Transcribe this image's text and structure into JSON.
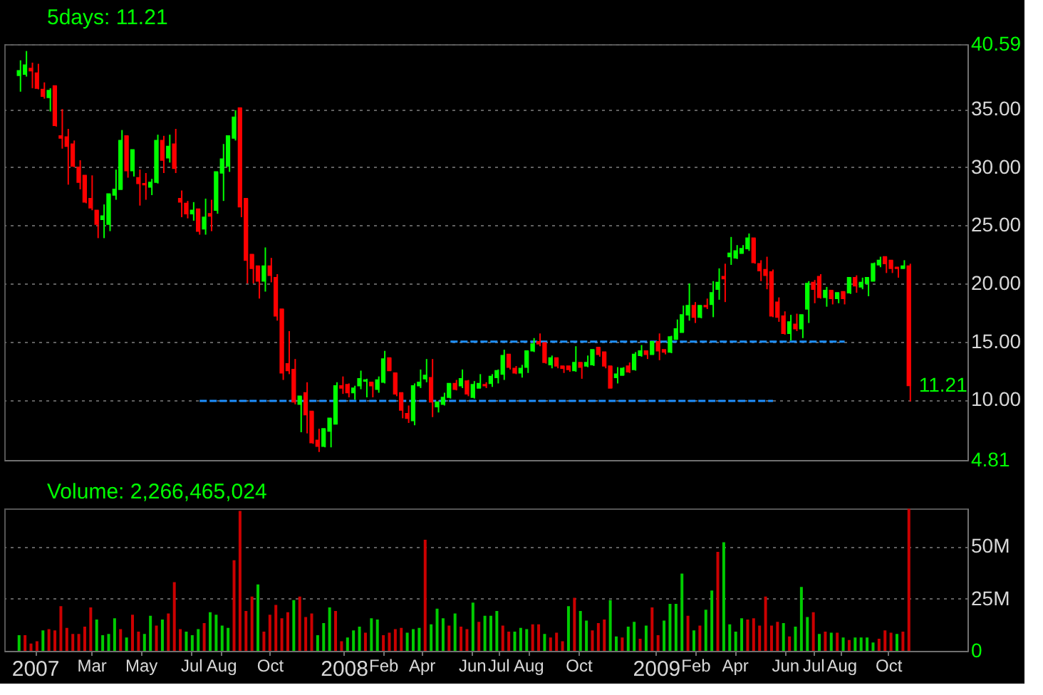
{
  "chart_data": [
    {
      "type": "candlestick",
      "title": "5days: 11.21",
      "x": [
        "2006-12-22",
        "2006-12-29",
        "2007-01-05",
        "2007-01-12",
        "2007-01-19",
        "2007-01-26",
        "2007-02-02",
        "2007-02-09",
        "2007-02-16",
        "2007-02-23",
        "2007-03-02",
        "2007-03-09",
        "2007-03-16",
        "2007-03-23",
        "2007-03-30",
        "2007-04-06",
        "2007-04-13",
        "2007-04-20",
        "2007-04-27",
        "2007-05-04",
        "2007-05-11",
        "2007-05-18",
        "2007-05-25",
        "2007-06-01",
        "2007-06-08",
        "2007-06-15",
        "2007-06-22",
        "2007-06-29",
        "2007-07-06",
        "2007-07-13",
        "2007-07-20",
        "2007-07-27",
        "2007-08-03",
        "2007-08-10",
        "2007-08-17",
        "2007-08-24",
        "2007-08-31",
        "2007-09-07",
        "2007-09-14",
        "2007-09-21",
        "2007-09-28",
        "2007-10-05",
        "2007-10-12",
        "2007-10-19",
        "2007-10-26",
        "2007-11-02",
        "2007-11-09",
        "2007-11-16",
        "2007-11-23",
        "2007-11-30",
        "2007-12-07",
        "2007-12-14",
        "2007-12-21",
        "2007-12-28",
        "2008-01-04",
        "2008-01-11",
        "2008-01-18",
        "2008-01-25",
        "2008-02-01",
        "2008-02-08",
        "2008-02-15",
        "2008-02-22",
        "2008-02-29",
        "2008-03-07",
        "2008-03-14",
        "2008-03-21",
        "2008-03-28",
        "2008-04-04",
        "2008-04-11",
        "2008-04-18",
        "2008-04-25",
        "2008-05-02",
        "2008-05-09",
        "2008-05-16",
        "2008-05-23",
        "2008-05-30",
        "2008-06-06",
        "2008-06-13",
        "2008-06-20",
        "2008-06-27",
        "2008-07-04",
        "2008-07-11",
        "2008-07-18",
        "2008-07-25",
        "2008-08-01",
        "2008-08-08",
        "2008-08-15",
        "2008-08-22",
        "2008-08-29",
        "2008-09-05",
        "2008-09-12",
        "2008-09-19",
        "2008-09-26",
        "2008-10-03",
        "2008-10-10",
        "2008-10-17",
        "2008-10-24",
        "2008-10-31",
        "2008-11-07",
        "2008-11-14",
        "2008-11-21",
        "2008-11-28",
        "2008-12-05",
        "2008-12-12",
        "2008-12-19",
        "2008-12-26",
        "2009-01-02",
        "2009-01-09",
        "2009-01-16",
        "2009-01-23",
        "2009-01-30",
        "2009-02-06",
        "2009-02-13",
        "2009-02-20",
        "2009-02-27",
        "2009-03-06",
        "2009-03-13",
        "2009-03-20",
        "2009-03-27",
        "2009-04-03",
        "2009-04-10",
        "2009-04-17",
        "2009-04-24",
        "2009-05-01",
        "2009-05-08",
        "2009-05-15",
        "2009-05-22",
        "2009-05-29",
        "2009-06-05",
        "2009-06-12",
        "2009-06-19",
        "2009-06-26",
        "2009-07-03",
        "2009-07-10",
        "2009-07-17",
        "2009-07-24",
        "2009-07-31",
        "2009-08-07",
        "2009-08-14",
        "2009-08-21",
        "2009-08-28",
        "2009-09-04",
        "2009-09-11",
        "2009-09-18",
        "2009-09-25",
        "2009-10-02",
        "2009-10-09",
        "2009-10-16",
        "2009-10-23",
        "2009-10-30"
      ],
      "ohlc": [
        [
          37.9,
          39.2,
          36.5,
          38.3
        ],
        [
          38.0,
          40.0,
          37.8,
          38.8
        ],
        [
          38.5,
          39.0,
          36.8,
          38.3
        ],
        [
          38.1,
          38.9,
          36.7,
          36.8
        ],
        [
          36.7,
          37.3,
          35.9,
          36.1
        ],
        [
          36.0,
          36.8,
          34.8,
          36.6
        ],
        [
          37.0,
          37.0,
          33.5,
          33.6
        ],
        [
          32.7,
          35.0,
          31.6,
          32.5
        ],
        [
          32.6,
          33.3,
          28.5,
          31.8
        ],
        [
          32.0,
          32.3,
          30.0,
          30.1
        ],
        [
          30.0,
          30.6,
          28.1,
          28.7
        ],
        [
          29.3,
          29.3,
          26.9,
          27.0
        ],
        [
          27.3,
          29.3,
          26.3,
          26.5
        ],
        [
          26.3,
          26.3,
          23.9,
          25.1
        ],
        [
          25.5,
          26.8,
          23.9,
          25.8
        ],
        [
          25.1,
          27.7,
          24.5,
          27.7
        ],
        [
          27.6,
          29.8,
          27.2,
          28.1
        ],
        [
          28.1,
          33.2,
          28.1,
          32.3
        ],
        [
          32.7,
          32.7,
          29.1,
          29.7
        ],
        [
          29.7,
          31.5,
          29.2,
          31.5
        ],
        [
          29.1,
          29.8,
          26.7,
          28.6
        ],
        [
          28.6,
          29.5,
          27.2,
          28.5
        ],
        [
          28.3,
          29.0,
          27.6,
          28.7
        ],
        [
          28.7,
          32.8,
          28.6,
          32.3
        ],
        [
          32.3,
          32.7,
          29.5,
          30.6
        ],
        [
          30.8,
          32.8,
          30.4,
          31.8
        ],
        [
          32.0,
          33.3,
          29.5,
          29.9
        ],
        [
          27.3,
          28.0,
          25.7,
          27.0
        ],
        [
          26.9,
          27.1,
          25.6,
          26.0
        ],
        [
          26.0,
          27.0,
          25.4,
          26.3
        ],
        [
          26.4,
          26.4,
          24.2,
          24.5
        ],
        [
          24.7,
          27.3,
          24.2,
          25.7
        ],
        [
          26.0,
          27.2,
          24.5,
          25.8
        ],
        [
          26.3,
          29.6,
          26.0,
          29.6
        ],
        [
          29.5,
          32.0,
          27.1,
          30.7
        ],
        [
          30.1,
          32.7,
          29.6,
          32.7
        ],
        [
          32.5,
          34.9,
          32.3,
          34.3
        ],
        [
          35.1,
          35.1,
          25.7,
          26.6
        ],
        [
          27.3,
          27.3,
          20.0,
          22.0
        ],
        [
          22.5,
          22.5,
          20.0,
          21.3
        ],
        [
          21.5,
          21.5,
          18.7,
          20.2
        ],
        [
          20.2,
          23.1,
          19.3,
          21.5
        ],
        [
          21.5,
          22.2,
          20.1,
          20.7
        ],
        [
          20.5,
          20.8,
          16.8,
          17.2
        ],
        [
          17.8,
          17.8,
          11.7,
          12.3
        ],
        [
          13.1,
          15.9,
          12.2,
          12.5
        ],
        [
          12.6,
          13.5,
          9.6,
          9.8
        ],
        [
          9.6,
          10.3,
          7.2,
          10.3
        ],
        [
          10.6,
          11.5,
          7.1,
          8.7
        ],
        [
          9.0,
          9.0,
          6.2,
          6.3
        ],
        [
          6.5,
          7.5,
          5.5,
          6.0
        ],
        [
          6.0,
          7.5,
          5.9,
          7.5
        ],
        [
          7.3,
          8.4,
          5.9,
          8.4
        ],
        [
          7.9,
          11.5,
          7.9,
          11.2
        ],
        [
          11.2,
          12.0,
          10.5,
          11.0
        ],
        [
          11.3,
          11.4,
          10.2,
          10.6
        ],
        [
          10.6,
          11.2,
          10.0,
          11.0
        ],
        [
          11.2,
          12.5,
          10.9,
          11.8
        ],
        [
          11.6,
          11.8,
          10.2,
          11.7
        ],
        [
          11.5,
          11.5,
          10.2,
          11.2
        ],
        [
          10.9,
          12.0,
          10.6,
          11.7
        ],
        [
          11.5,
          14.2,
          11.4,
          13.5
        ],
        [
          13.6,
          13.6,
          12.5,
          12.5
        ],
        [
          12.3,
          12.3,
          10.3,
          10.5
        ],
        [
          10.6,
          10.6,
          8.4,
          9.1
        ],
        [
          8.8,
          9.5,
          8.0,
          8.4
        ],
        [
          8.2,
          11.4,
          7.8,
          11.2
        ],
        [
          11.2,
          12.6,
          11.0,
          11.5
        ],
        [
          11.8,
          13.5,
          11.5,
          12.1
        ],
        [
          11.9,
          13.5,
          8.5,
          9.8
        ],
        [
          9.4,
          9.8,
          8.9,
          9.8
        ],
        [
          9.6,
          10.6,
          9.5,
          10.2
        ],
        [
          10.2,
          11.4,
          10.1,
          11.4
        ],
        [
          11.4,
          11.7,
          10.8,
          10.9
        ],
        [
          11.2,
          12.6,
          11.0,
          11.8
        ],
        [
          11.6,
          11.7,
          10.3,
          10.5
        ],
        [
          10.2,
          11.6,
          10.1,
          11.3
        ],
        [
          11.0,
          12.2,
          11.0,
          11.4
        ],
        [
          11.3,
          11.5,
          11.0,
          11.2
        ],
        [
          11.4,
          12.2,
          11.1,
          12.0
        ],
        [
          11.9,
          12.6,
          11.4,
          12.5
        ],
        [
          12.2,
          14.3,
          11.7,
          13.8
        ],
        [
          13.9,
          13.9,
          12.6,
          12.8
        ],
        [
          12.7,
          12.9,
          12.2,
          12.3
        ],
        [
          12.3,
          13.0,
          11.9,
          12.7
        ],
        [
          12.8,
          14.2,
          12.3,
          14.2
        ],
        [
          14.2,
          15.3,
          14.1,
          14.8
        ],
        [
          15.0,
          15.7,
          14.6,
          14.8
        ],
        [
          14.9,
          14.9,
          13.1,
          13.2
        ],
        [
          13.0,
          13.8,
          12.7,
          13.6
        ],
        [
          13.6,
          13.6,
          12.7,
          12.9
        ],
        [
          12.9,
          12.9,
          12.3,
          12.7
        ],
        [
          12.9,
          12.9,
          12.4,
          12.6
        ],
        [
          12.5,
          14.6,
          12.4,
          13.2
        ],
        [
          13.2,
          13.2,
          11.8,
          12.8
        ],
        [
          12.9,
          13.8,
          12.8,
          13.2
        ],
        [
          13.0,
          14.3,
          12.9,
          14.3
        ],
        [
          14.5,
          14.5,
          13.7,
          13.9
        ],
        [
          14.1,
          14.1,
          12.7,
          12.9
        ],
        [
          12.9,
          12.9,
          11.0,
          11.0
        ],
        [
          11.9,
          12.8,
          11.4,
          12.2
        ],
        [
          12.1,
          12.8,
          12.1,
          12.7
        ],
        [
          12.9,
          13.2,
          12.3,
          12.4
        ],
        [
          12.6,
          14.1,
          12.5,
          13.9
        ],
        [
          13.8,
          14.7,
          13.7,
          14.2
        ],
        [
          14.2,
          14.2,
          13.5,
          13.9
        ],
        [
          13.9,
          15.0,
          13.9,
          15.0
        ],
        [
          15.0,
          15.7,
          13.4,
          14.2
        ],
        [
          14.3,
          14.3,
          13.9,
          14.1
        ],
        [
          14.1,
          15.5,
          14.0,
          15.4
        ],
        [
          15.2,
          16.9,
          15.2,
          16.1
        ],
        [
          15.8,
          18.1,
          15.8,
          17.3
        ],
        [
          17.3,
          20.0,
          16.8,
          18.1
        ],
        [
          18.1,
          18.4,
          16.6,
          17.1
        ],
        [
          17.1,
          18.1,
          17.0,
          18.1
        ],
        [
          18.1,
          18.7,
          17.8,
          18.0
        ],
        [
          18.2,
          20.2,
          17.1,
          19.2
        ],
        [
          19.5,
          21.3,
          18.6,
          20.1
        ],
        [
          20.6,
          21.7,
          18.4,
          20.4
        ],
        [
          22.3,
          24.0,
          21.6,
          22.6
        ],
        [
          22.2,
          23.3,
          22.1,
          22.8
        ],
        [
          22.6,
          23.3,
          22.6,
          23.0
        ],
        [
          23.0,
          24.3,
          22.8,
          23.9
        ],
        [
          23.9,
          23.9,
          21.7,
          21.8
        ],
        [
          21.7,
          22.0,
          20.2,
          21.1
        ],
        [
          21.2,
          22.3,
          19.5,
          20.7
        ],
        [
          21.0,
          21.2,
          17.1,
          17.2
        ],
        [
          18.4,
          18.8,
          16.7,
          17.1
        ],
        [
          17.2,
          17.6,
          15.6,
          15.7
        ],
        [
          15.7,
          17.3,
          15.1,
          16.7
        ],
        [
          16.5,
          17.4,
          15.9,
          16.1
        ],
        [
          16.1,
          17.3,
          15.3,
          17.3
        ],
        [
          17.8,
          20.2,
          16.6,
          20.0
        ],
        [
          20.1,
          20.3,
          18.3,
          19.5
        ],
        [
          20.6,
          20.8,
          18.7,
          18.8
        ],
        [
          18.8,
          19.7,
          18.0,
          19.4
        ],
        [
          19.4,
          19.4,
          18.2,
          18.7
        ],
        [
          18.7,
          19.2,
          18.3,
          19.2
        ],
        [
          19.3,
          19.3,
          18.2,
          18.7
        ],
        [
          19.2,
          20.5,
          19.1,
          20.5
        ],
        [
          20.5,
          20.7,
          19.2,
          19.8
        ],
        [
          19.7,
          20.5,
          19.5,
          20.1
        ],
        [
          20.0,
          20.5,
          18.9,
          20.5
        ],
        [
          20.2,
          21.8,
          20.2,
          21.7
        ],
        [
          21.6,
          22.3,
          21.4,
          22.0
        ],
        [
          22.3,
          22.3,
          20.9,
          21.7
        ],
        [
          22.0,
          22.0,
          20.9,
          21.3
        ],
        [
          21.4,
          21.4,
          20.5,
          21.3
        ],
        [
          21.3,
          22.0,
          21.3,
          21.5
        ],
        [
          21.5,
          21.7,
          9.85,
          11.21
        ]
      ],
      "colors": [
        "#00ff00",
        "#00ff00",
        "#ff0000",
        "#ff0000",
        "#ff0000",
        "#00ff00",
        "#ff0000",
        "#ff0000",
        "#ff0000",
        "#ff0000",
        "#ff0000",
        "#ff0000",
        "#ff0000",
        "#ff0000",
        "#00ff00",
        "#00ff00",
        "#00ff00",
        "#00ff00",
        "#ff0000",
        "#00ff00",
        "#ff0000",
        "#ff0000",
        "#00ff00",
        "#00ff00",
        "#ff0000",
        "#00ff00",
        "#ff0000",
        "#ff0000",
        "#ff0000",
        "#00ff00",
        "#ff0000",
        "#00ff00",
        "#ff0000",
        "#00ff00",
        "#00ff00",
        "#00ff00",
        "#00ff00",
        "#ff0000",
        "#ff0000",
        "#ff0000",
        "#ff0000",
        "#00ff00",
        "#ff0000",
        "#ff0000",
        "#ff0000",
        "#ff0000",
        "#ff0000",
        "#00ff00",
        "#ff0000",
        "#ff0000",
        "#ff0000",
        "#00ff00",
        "#00ff00",
        "#00ff00",
        "#ff0000",
        "#ff0000",
        "#00ff00",
        "#00ff00",
        "#00ff00",
        "#ff0000",
        "#00ff00",
        "#00ff00",
        "#ff0000",
        "#ff0000",
        "#ff0000",
        "#ff0000",
        "#00ff00",
        "#00ff00",
        "#00ff00",
        "#ff0000",
        "#00ff00",
        "#00ff00",
        "#00ff00",
        "#ff0000",
        "#00ff00",
        "#ff0000",
        "#00ff00",
        "#00ff00",
        "#ff0000",
        "#00ff00",
        "#00ff00",
        "#00ff00",
        "#ff0000",
        "#ff0000",
        "#00ff00",
        "#00ff00",
        "#00ff00",
        "#ff0000",
        "#ff0000",
        "#00ff00",
        "#ff0000",
        "#ff0000",
        "#ff0000",
        "#00ff00",
        "#ff0000",
        "#00ff00",
        "#00ff00",
        "#ff0000",
        "#ff0000",
        "#ff0000",
        "#00ff00",
        "#00ff00",
        "#ff0000",
        "#00ff00",
        "#00ff00",
        "#ff0000",
        "#00ff00",
        "#ff0000",
        "#ff0000",
        "#00ff00",
        "#00ff00",
        "#00ff00",
        "#00ff00",
        "#ff0000",
        "#00ff00",
        "#ff0000",
        "#00ff00",
        "#00ff00",
        "#ff0000",
        "#00ff00",
        "#00ff00",
        "#00ff00",
        "#00ff00",
        "#ff0000",
        "#ff0000",
        "#ff0000",
        "#ff0000",
        "#ff0000",
        "#ff0000",
        "#00ff00",
        "#ff0000",
        "#00ff00",
        "#00ff00",
        "#ff0000",
        "#ff0000",
        "#00ff00",
        "#ff0000",
        "#00ff00",
        "#ff0000",
        "#00ff00",
        "#ff0000",
        "#00ff00",
        "#00ff00",
        "#00ff00",
        "#00ff00",
        "#ff0000",
        "#ff0000",
        "#ff0000",
        "#00ff00",
        "#ff0000"
      ],
      "series": [
        {
          "type": "line",
          "color": "#1e90ff",
          "line_style": "dashed",
          "x": [
            "2007-07-20",
            "2009-05-22"
          ],
          "values": [
            9.9,
            9.9
          ]
        },
        {
          "type": "line",
          "color": "#1e90ff",
          "line_style": "dashed",
          "x": [
            "2008-05-09",
            "2009-08-14"
          ],
          "values": [
            15.0,
            15.0
          ]
        }
      ],
      "annotations": [
        {
          "text": "11.21",
          "x": "2009-10-30",
          "y": 11.21
        }
      ],
      "xlim": [
        "2006-12-03",
        "2010-01-05"
      ],
      "ylim": [
        4.81,
        40.59
      ],
      "yticks": [
        4.81,
        {
          "value": 10,
          "label": "10.00"
        },
        {
          "value": 15,
          "label": "15.00"
        },
        {
          "value": 20,
          "label": "20.00"
        },
        {
          "value": 25,
          "label": "25.00"
        },
        {
          "value": 30,
          "label": "30.00"
        },
        {
          "value": 35,
          "label": "35.00"
        },
        40.59
      ],
      "grid": "y",
      "tick_labels": "y"
    },
    {
      "type": "bar",
      "title": "Volume: 2,266,465,024",
      "x": [
        "2006-12-22",
        "2006-12-29",
        "2007-01-05",
        "2007-01-12",
        "2007-01-19",
        "2007-01-26",
        "2007-02-02",
        "2007-02-09",
        "2007-02-16",
        "2007-02-23",
        "2007-03-02",
        "2007-03-09",
        "2007-03-16",
        "2007-03-23",
        "2007-03-30",
        "2007-04-06",
        "2007-04-13",
        "2007-04-20",
        "2007-04-27",
        "2007-05-04",
        "2007-05-11",
        "2007-05-18",
        "2007-05-25",
        "2007-06-01",
        "2007-06-08",
        "2007-06-15",
        "2007-06-22",
        "2007-06-29",
        "2007-07-06",
        "2007-07-13",
        "2007-07-20",
        "2007-07-27",
        "2007-08-03",
        "2007-08-10",
        "2007-08-17",
        "2007-08-24",
        "2007-08-31",
        "2007-09-07",
        "2007-09-14",
        "2007-09-21",
        "2007-09-28",
        "2007-10-05",
        "2007-10-12",
        "2007-10-19",
        "2007-10-26",
        "2007-11-02",
        "2007-11-09",
        "2007-11-16",
        "2007-11-23",
        "2007-11-30",
        "2007-12-07",
        "2007-12-14",
        "2007-12-21",
        "2007-12-28",
        "2008-01-04",
        "2008-01-11",
        "2008-01-18",
        "2008-01-25",
        "2008-02-01",
        "2008-02-08",
        "2008-02-15",
        "2008-02-22",
        "2008-02-29",
        "2008-03-07",
        "2008-03-14",
        "2008-03-21",
        "2008-03-28",
        "2008-04-04",
        "2008-04-11",
        "2008-04-18",
        "2008-04-25",
        "2008-05-02",
        "2008-05-09",
        "2008-05-16",
        "2008-05-23",
        "2008-05-30",
        "2008-06-06",
        "2008-06-13",
        "2008-06-20",
        "2008-06-27",
        "2008-07-04",
        "2008-07-11",
        "2008-07-18",
        "2008-07-25",
        "2008-08-01",
        "2008-08-08",
        "2008-08-15",
        "2008-08-22",
        "2008-08-29",
        "2008-09-05",
        "2008-09-12",
        "2008-09-19",
        "2008-09-26",
        "2008-10-03",
        "2008-10-10",
        "2008-10-17",
        "2008-10-24",
        "2008-10-31",
        "2008-11-07",
        "2008-11-14",
        "2008-11-21",
        "2008-11-28",
        "2008-12-05",
        "2008-12-12",
        "2008-12-19",
        "2008-12-26",
        "2009-01-02",
        "2009-01-09",
        "2009-01-16",
        "2009-01-23",
        "2009-01-30",
        "2009-02-06",
        "2009-02-13",
        "2009-02-20",
        "2009-02-27",
        "2009-03-06",
        "2009-03-13",
        "2009-03-20",
        "2009-03-27",
        "2009-04-03",
        "2009-04-10",
        "2009-04-17",
        "2009-04-24",
        "2009-05-01",
        "2009-05-08",
        "2009-05-15",
        "2009-05-22",
        "2009-05-29",
        "2009-06-05",
        "2009-06-12",
        "2009-06-19",
        "2009-06-26",
        "2009-07-03",
        "2009-07-10",
        "2009-07-17",
        "2009-07-24",
        "2009-07-31",
        "2009-08-07",
        "2009-08-14",
        "2009-08-21",
        "2009-08-28",
        "2009-09-04",
        "2009-09-11",
        "2009-09-18",
        "2009-09-25",
        "2009-10-02",
        "2009-10-09",
        "2009-10-16",
        "2009-10-23",
        "2009-10-30"
      ],
      "values": [
        7.5,
        7.5,
        3.5,
        4.6,
        9.8,
        10.4,
        9.8,
        21.4,
        11.0,
        8.1,
        8.1,
        11.6,
        20.8,
        15.0,
        7.5,
        8.1,
        15.6,
        10.4,
        6.4,
        17.3,
        9.2,
        8.1,
        16.8,
        12.1,
        15.0,
        17.9,
        32.9,
        10.4,
        9.2,
        7.5,
        10.4,
        13.3,
        18.5,
        17.3,
        12.1,
        11.0,
        43.4,
        67.0,
        19.1,
        26.0,
        31.8,
        9.2,
        17.3,
        22.0,
        15.6,
        18.5,
        24.3,
        26.0,
        16.2,
        17.9,
        7.5,
        13.3,
        20.8,
        19.1,
        4.6,
        6.4,
        9.8,
        11.6,
        8.7,
        15.6,
        15.0,
        7.5,
        8.7,
        10.4,
        11.0,
        8.7,
        10.4,
        11.0,
        53.2,
        12.7,
        20.2,
        15.6,
        12.1,
        17.9,
        11.6,
        10.4,
        23.1,
        13.9,
        16.8,
        16.8,
        19.1,
        12.1,
        9.2,
        9.2,
        11.0,
        10.4,
        12.7,
        12.7,
        8.1,
        6.4,
        8.7,
        4.6,
        21.4,
        25.4,
        19.1,
        14.5,
        9.8,
        13.3,
        15.0,
        24.3,
        6.9,
        6.4,
        11.6,
        13.9,
        5.8,
        12.1,
        20.8,
        7.5,
        14.5,
        22.5,
        22.5,
        37.0,
        16.8,
        9.8,
        12.1,
        19.7,
        28.9,
        47.4,
        52.0,
        12.7,
        9.2,
        15.6,
        15.0,
        15.6,
        12.1,
        26.0,
        12.1,
        13.9,
        13.3,
        6.9,
        11.6,
        30.6,
        16.2,
        18.5,
        8.1,
        9.2,
        8.7,
        8.7,
        6.4,
        5.2,
        6.4,
        6.4,
        6.4,
        4.0,
        5.8,
        9.8,
        8.7,
        8.1,
        9.2,
        68.0
      ],
      "colors": [
        "#00cc00",
        "#cc0000",
        "#cc0000",
        "#cc0000",
        "#00cc00",
        "#cc0000",
        "#cc0000",
        "#cc0000",
        "#cc0000",
        "#cc0000",
        "#cc0000",
        "#cc0000",
        "#cc0000",
        "#00cc00",
        "#00cc00",
        "#00cc00",
        "#00cc00",
        "#cc0000",
        "#00cc00",
        "#cc0000",
        "#cc0000",
        "#00cc00",
        "#00cc00",
        "#cc0000",
        "#00cc00",
        "#cc0000",
        "#cc0000",
        "#cc0000",
        "#00cc00",
        "#00cc00",
        "#00cc00",
        "#cc0000",
        "#00cc00",
        "#00cc00",
        "#00cc00",
        "#00cc00",
        "#cc0000",
        "#cc0000",
        "#cc0000",
        "#cc0000",
        "#00cc00",
        "#cc0000",
        "#cc0000",
        "#cc0000",
        "#cc0000",
        "#cc0000",
        "#00cc00",
        "#cc0000",
        "#cc0000",
        "#cc0000",
        "#00cc00",
        "#00cc00",
        "#00cc00",
        "#cc0000",
        "#cc0000",
        "#00cc00",
        "#00cc00",
        "#00cc00",
        "#cc0000",
        "#00cc00",
        "#00cc00",
        "#cc0000",
        "#cc0000",
        "#cc0000",
        "#cc0000",
        "#00cc00",
        "#00cc00",
        "#00cc00",
        "#cc0000",
        "#00cc00",
        "#00cc00",
        "#00cc00",
        "#cc0000",
        "#00cc00",
        "#cc0000",
        "#cc0000",
        "#00cc00",
        "#cc0000",
        "#00cc00",
        "#00cc00",
        "#00cc00",
        "#cc0000",
        "#cc0000",
        "#00cc00",
        "#00cc00",
        "#00cc00",
        "#cc0000",
        "#cc0000",
        "#00cc00",
        "#cc0000",
        "#cc0000",
        "#cc0000",
        "#00cc00",
        "#cc0000",
        "#00cc00",
        "#00cc00",
        "#cc0000",
        "#cc0000",
        "#cc0000",
        "#00cc00",
        "#00cc00",
        "#cc0000",
        "#00cc00",
        "#00cc00",
        "#cc0000",
        "#00cc00",
        "#cc0000",
        "#cc0000",
        "#00cc00",
        "#00cc00",
        "#00cc00",
        "#00cc00",
        "#cc0000",
        "#00cc00",
        "#cc0000",
        "#00cc00",
        "#00cc00",
        "#cc0000",
        "#00cc00",
        "#00cc00",
        "#00cc00",
        "#00cc00",
        "#cc0000",
        "#cc0000",
        "#cc0000",
        "#cc0000",
        "#cc0000",
        "#cc0000",
        "#00cc00",
        "#cc0000",
        "#00cc00",
        "#00cc00",
        "#00cc00",
        "#cc0000",
        "#00cc00",
        "#cc0000",
        "#00cc00",
        "#cc0000",
        "#00cc00",
        "#cc0000",
        "#00cc00",
        "#00cc00",
        "#00cc00",
        "#00cc00",
        "#cc0000",
        "#cc0000",
        "#cc0000",
        "#00cc00",
        "#cc0000",
        "#cc0000"
      ],
      "xlim": [
        "2006-12-03",
        "2010-01-05"
      ],
      "ylim": [
        0,
        68.2
      ],
      "yticks": [
        0,
        {
          "value": 25,
          "label": "25M"
        },
        {
          "value": 50,
          "label": "50M"
        }
      ],
      "xticks": [
        {
          "value": "2007-01-08",
          "label": "2007"
        },
        {
          "value": "2007-03-15",
          "label": "Mar"
        },
        {
          "value": "2007-05-12",
          "label": "May"
        },
        {
          "value": "2007-07-10",
          "label": "Jul"
        },
        {
          "value": "2007-08-14",
          "label": "Aug"
        },
        {
          "value": "2007-10-10",
          "label": "Oct"
        },
        {
          "value": "2008-01-05",
          "label": "2008"
        },
        {
          "value": "2008-02-20",
          "label": "Feb"
        },
        {
          "value": "2008-04-05",
          "label": "Apr"
        },
        {
          "value": "2008-06-03",
          "label": "Jun"
        },
        {
          "value": "2008-07-04",
          "label": "Jul"
        },
        {
          "value": "2008-08-08",
          "label": "Aug"
        },
        {
          "value": "2008-10-06",
          "label": "Oct"
        },
        {
          "value": "2009-01-05",
          "label": "2009"
        },
        {
          "value": "2009-02-20",
          "label": "Feb"
        },
        {
          "value": "2009-04-07",
          "label": "Apr"
        },
        {
          "value": "2009-06-05",
          "label": "Jun"
        },
        {
          "value": "2009-07-08",
          "label": "Jul"
        },
        {
          "value": "2009-08-10",
          "label": "Aug"
        },
        {
          "value": "2009-10-04",
          "label": "Oct"
        }
      ],
      "grid": "y"
    }
  ]
}
